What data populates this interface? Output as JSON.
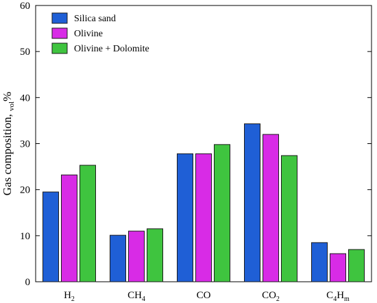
{
  "chart_data": {
    "type": "bar",
    "ylabel_main": "Gas composition,",
    "ylabel_sub": "vol",
    "ylabel_unit": "%",
    "ylim": [
      0,
      60
    ],
    "yticks": [
      0,
      10,
      20,
      30,
      40,
      50,
      60
    ],
    "categories": [
      {
        "base": "H",
        "sub": "2"
      },
      {
        "base": "CH",
        "sub": "4"
      },
      {
        "base": "CO",
        "sub": ""
      },
      {
        "base": "CO",
        "sub": "2"
      },
      {
        "base": "C",
        "sub": "4",
        "base2": "H",
        "sub2": "m"
      }
    ],
    "series": [
      {
        "name": "Silica sand",
        "color": "#1f5fd6",
        "values": [
          19.5,
          10.1,
          27.8,
          34.3,
          8.5
        ]
      },
      {
        "name": "Olivine",
        "color": "#d82be6",
        "values": [
          23.2,
          11.0,
          27.8,
          32.0,
          6.1
        ]
      },
      {
        "name": "Olivine + Dolomite",
        "color": "#3fc43f",
        "values": [
          25.3,
          11.5,
          29.8,
          27.4,
          7.0
        ]
      }
    ],
    "legend_position": "top-left",
    "grid": false
  }
}
